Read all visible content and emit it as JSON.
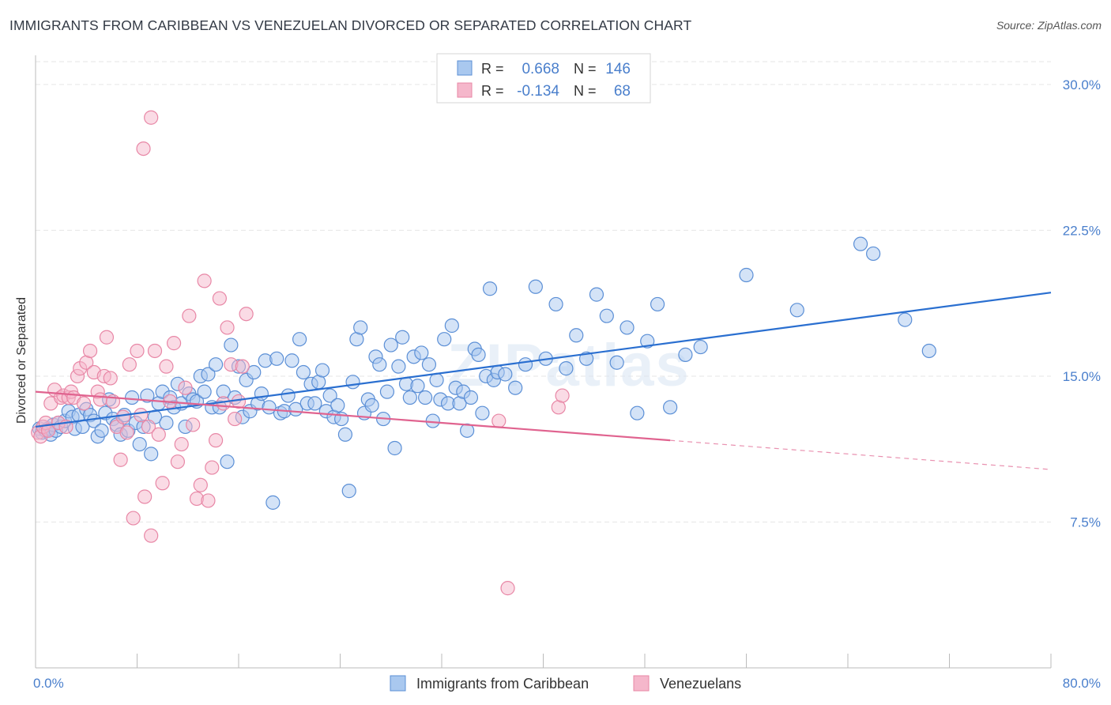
{
  "header": {
    "title": "IMMIGRANTS FROM CARIBBEAN VS VENEZUELAN DIVORCED OR SEPARATED CORRELATION CHART",
    "source": "Source: ZipAtlas.com"
  },
  "watermark": "ZIPatlas",
  "colors": {
    "blue_fill": "#a9c8ef",
    "blue_stroke": "#5b8fd6",
    "blue_line": "#2a6fd0",
    "pink_fill": "#f5b7cb",
    "pink_stroke": "#e887a6",
    "pink_line": "#e0638f",
    "tick_label": "#4a7fcc",
    "grid": "#e6e6e6"
  },
  "chart_data": {
    "type": "scatter",
    "title": "IMMIGRANTS FROM CARIBBEAN VS VENEZUELAN DIVORCED OR SEPARATED CORRELATION CHART",
    "xlabel": "",
    "ylabel": "Divorced or Separated",
    "xlim": [
      0,
      80
    ],
    "ylim": [
      0,
      31.5
    ],
    "x_tick_labels": [
      "0.0%",
      "80.0%"
    ],
    "y_ticks": [
      7.5,
      15.0,
      22.5,
      30.0
    ],
    "y_tick_labels": [
      "7.5%",
      "15.0%",
      "22.5%",
      "30.0%"
    ],
    "grid": true,
    "legend": {
      "position": "top-center",
      "entries": [
        {
          "r_label": "R =",
          "r_value": "0.668",
          "n_label": "N =",
          "n_value": "146"
        },
        {
          "r_label": "R =",
          "r_value": "-0.134",
          "n_label": "N =",
          "n_value": "68"
        }
      ]
    },
    "bottom_legend": [
      "Immigrants from Caribbean",
      "Venezuelans"
    ],
    "series": [
      {
        "name": "Immigrants from Caribbean",
        "trend": {
          "x": [
            0,
            80
          ],
          "y": [
            12.4,
            19.3
          ],
          "dashed_from": null
        },
        "points": [
          [
            0.3,
            12.3
          ],
          [
            0.5,
            12.1
          ],
          [
            0.6,
            12.4
          ],
          [
            0.8,
            12.2
          ],
          [
            1.0,
            12.3
          ],
          [
            1.2,
            12.0
          ],
          [
            1.4,
            12.5
          ],
          [
            1.6,
            12.2
          ],
          [
            1.8,
            12.6
          ],
          [
            2.0,
            12.4
          ],
          [
            2.3,
            12.7
          ],
          [
            2.6,
            13.2
          ],
          [
            2.9,
            12.9
          ],
          [
            3.1,
            12.3
          ],
          [
            3.4,
            13.0
          ],
          [
            3.7,
            12.4
          ],
          [
            4.0,
            13.3
          ],
          [
            4.3,
            13.0
          ],
          [
            4.6,
            12.7
          ],
          [
            4.9,
            11.9
          ],
          [
            5.2,
            12.2
          ],
          [
            5.5,
            13.1
          ],
          [
            5.8,
            13.8
          ],
          [
            6.1,
            12.8
          ],
          [
            6.4,
            12.5
          ],
          [
            6.7,
            12.0
          ],
          [
            7.0,
            13.0
          ],
          [
            7.3,
            12.2
          ],
          [
            7.6,
            13.9
          ],
          [
            7.9,
            12.6
          ],
          [
            8.2,
            11.5
          ],
          [
            8.5,
            12.4
          ],
          [
            8.8,
            14.0
          ],
          [
            9.1,
            11.0
          ],
          [
            9.4,
            12.9
          ],
          [
            9.7,
            13.6
          ],
          [
            10.0,
            14.2
          ],
          [
            10.3,
            12.6
          ],
          [
            10.6,
            13.9
          ],
          [
            10.9,
            13.4
          ],
          [
            11.2,
            14.6
          ],
          [
            11.5,
            13.6
          ],
          [
            11.8,
            12.4
          ],
          [
            12.1,
            14.1
          ],
          [
            12.4,
            13.8
          ],
          [
            12.7,
            13.7
          ],
          [
            13.0,
            15.0
          ],
          [
            13.3,
            14.2
          ],
          [
            13.6,
            15.1
          ],
          [
            13.9,
            13.4
          ],
          [
            14.2,
            15.6
          ],
          [
            14.5,
            13.4
          ],
          [
            14.8,
            14.2
          ],
          [
            15.1,
            10.6
          ],
          [
            15.4,
            16.6
          ],
          [
            15.7,
            13.9
          ],
          [
            16.0,
            15.5
          ],
          [
            16.3,
            12.9
          ],
          [
            16.6,
            14.8
          ],
          [
            16.9,
            13.2
          ],
          [
            17.2,
            15.2
          ],
          [
            17.5,
            13.6
          ],
          [
            17.8,
            14.1
          ],
          [
            18.1,
            15.8
          ],
          [
            18.4,
            13.4
          ],
          [
            18.7,
            8.5
          ],
          [
            19.0,
            15.9
          ],
          [
            19.3,
            13.1
          ],
          [
            19.6,
            13.2
          ],
          [
            19.9,
            14.0
          ],
          [
            20.2,
            15.8
          ],
          [
            20.5,
            13.3
          ],
          [
            20.8,
            16.9
          ],
          [
            21.1,
            15.2
          ],
          [
            21.4,
            13.6
          ],
          [
            21.7,
            14.6
          ],
          [
            22.0,
            13.6
          ],
          [
            22.3,
            14.7
          ],
          [
            22.6,
            15.3
          ],
          [
            22.9,
            13.2
          ],
          [
            23.2,
            14.0
          ],
          [
            23.5,
            12.9
          ],
          [
            23.8,
            13.5
          ],
          [
            24.1,
            12.8
          ],
          [
            24.4,
            12.0
          ],
          [
            24.7,
            9.1
          ],
          [
            25.0,
            14.7
          ],
          [
            25.3,
            16.9
          ],
          [
            25.6,
            17.5
          ],
          [
            25.9,
            13.1
          ],
          [
            26.2,
            13.8
          ],
          [
            26.5,
            13.5
          ],
          [
            26.8,
            16.0
          ],
          [
            27.1,
            15.6
          ],
          [
            27.4,
            12.8
          ],
          [
            27.7,
            14.2
          ],
          [
            28.0,
            16.6
          ],
          [
            28.3,
            11.3
          ],
          [
            28.6,
            15.5
          ],
          [
            28.9,
            17.0
          ],
          [
            29.2,
            14.6
          ],
          [
            29.5,
            13.9
          ],
          [
            29.8,
            16.0
          ],
          [
            30.1,
            14.5
          ],
          [
            30.4,
            16.2
          ],
          [
            30.7,
            13.9
          ],
          [
            31.0,
            15.6
          ],
          [
            31.3,
            12.7
          ],
          [
            31.6,
            14.8
          ],
          [
            31.9,
            13.8
          ],
          [
            32.2,
            16.9
          ],
          [
            32.5,
            13.6
          ],
          [
            32.8,
            17.6
          ],
          [
            33.1,
            14.4
          ],
          [
            33.4,
            13.6
          ],
          [
            33.7,
            14.2
          ],
          [
            34.0,
            12.2
          ],
          [
            34.3,
            13.9
          ],
          [
            34.6,
            16.4
          ],
          [
            34.9,
            16.1
          ],
          [
            35.2,
            13.1
          ],
          [
            35.5,
            15.0
          ],
          [
            35.8,
            19.5
          ],
          [
            36.1,
            14.8
          ],
          [
            36.4,
            15.2
          ],
          [
            37.0,
            15.1
          ],
          [
            37.8,
            14.4
          ],
          [
            38.6,
            15.6
          ],
          [
            39.4,
            19.6
          ],
          [
            40.2,
            15.9
          ],
          [
            41.0,
            18.7
          ],
          [
            41.8,
            15.4
          ],
          [
            42.6,
            17.1
          ],
          [
            43.4,
            15.9
          ],
          [
            44.2,
            19.2
          ],
          [
            45.0,
            18.1
          ],
          [
            45.8,
            15.7
          ],
          [
            46.6,
            17.5
          ],
          [
            47.4,
            13.1
          ],
          [
            48.2,
            16.8
          ],
          [
            49.0,
            18.7
          ],
          [
            50.0,
            13.4
          ],
          [
            51.2,
            16.1
          ],
          [
            52.4,
            16.5
          ],
          [
            56.0,
            20.2
          ],
          [
            60.0,
            18.4
          ],
          [
            65.0,
            21.8
          ],
          [
            66.0,
            21.3
          ],
          [
            68.5,
            17.9
          ],
          [
            70.4,
            16.3
          ]
        ]
      },
      {
        "name": "Venezuelans",
        "trend": {
          "x": [
            0,
            80
          ],
          "y": [
            14.2,
            10.2
          ],
          "dashed_from": 50
        },
        "points": [
          [
            0.2,
            12.1
          ],
          [
            0.4,
            11.9
          ],
          [
            0.6,
            12.4
          ],
          [
            0.8,
            12.6
          ],
          [
            1.0,
            12.2
          ],
          [
            1.2,
            13.6
          ],
          [
            1.5,
            14.3
          ],
          [
            1.8,
            12.6
          ],
          [
            2.0,
            13.9
          ],
          [
            2.2,
            14.0
          ],
          [
            2.4,
            12.4
          ],
          [
            2.6,
            13.9
          ],
          [
            2.8,
            14.2
          ],
          [
            3.0,
            13.9
          ],
          [
            3.3,
            15.0
          ],
          [
            3.5,
            15.4
          ],
          [
            3.8,
            13.6
          ],
          [
            4.0,
            15.7
          ],
          [
            4.3,
            16.3
          ],
          [
            4.6,
            15.2
          ],
          [
            4.9,
            14.2
          ],
          [
            5.1,
            13.8
          ],
          [
            5.4,
            15.0
          ],
          [
            5.6,
            17.0
          ],
          [
            5.9,
            14.9
          ],
          [
            6.1,
            13.7
          ],
          [
            6.4,
            12.4
          ],
          [
            6.7,
            10.7
          ],
          [
            6.9,
            12.9
          ],
          [
            7.2,
            12.1
          ],
          [
            7.4,
            15.6
          ],
          [
            7.7,
            7.7
          ],
          [
            8.0,
            16.3
          ],
          [
            8.3,
            13.0
          ],
          [
            8.6,
            8.8
          ],
          [
            8.9,
            12.4
          ],
          [
            9.1,
            6.8
          ],
          [
            9.4,
            16.3
          ],
          [
            9.7,
            12.0
          ],
          [
            10.0,
            9.5
          ],
          [
            10.3,
            15.5
          ],
          [
            10.6,
            13.7
          ],
          [
            10.9,
            16.7
          ],
          [
            11.2,
            10.6
          ],
          [
            11.5,
            11.5
          ],
          [
            11.8,
            14.4
          ],
          [
            12.1,
            18.1
          ],
          [
            12.4,
            12.5
          ],
          [
            12.7,
            8.7
          ],
          [
            13.0,
            9.4
          ],
          [
            13.3,
            19.9
          ],
          [
            13.6,
            8.6
          ],
          [
            13.9,
            10.3
          ],
          [
            14.2,
            11.7
          ],
          [
            14.5,
            19.0
          ],
          [
            14.8,
            13.6
          ],
          [
            15.1,
            17.5
          ],
          [
            15.4,
            15.6
          ],
          [
            15.7,
            12.8
          ],
          [
            16.0,
            13.7
          ],
          [
            16.3,
            15.5
          ],
          [
            16.6,
            18.2
          ],
          [
            8.5,
            26.7
          ],
          [
            9.1,
            28.3
          ],
          [
            37.2,
            4.1
          ],
          [
            36.5,
            12.7
          ],
          [
            41.2,
            13.4
          ],
          [
            41.5,
            14.0
          ]
        ]
      }
    ]
  }
}
